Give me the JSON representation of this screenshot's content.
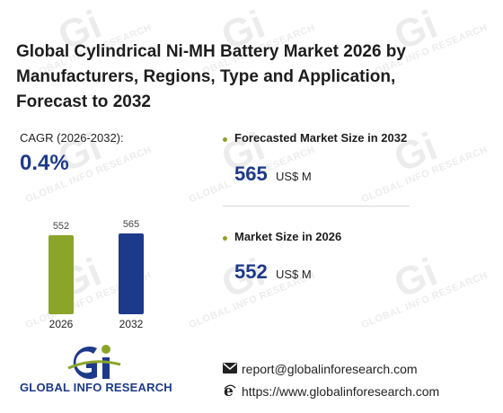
{
  "header": {
    "title": "Global Cylindrical Ni-MH Battery Market 2026 by Manufacturers, Regions, Type and Application, Forecast to 2032"
  },
  "cagr": {
    "label": "CAGR (2026-2032):",
    "value": "0.4%"
  },
  "kpis": [
    {
      "title": "Forecasted Market Size in 2032",
      "value": "565",
      "unit": "US$ M"
    },
    {
      "title": "Market Size in 2026",
      "value": "552",
      "unit": "US$ M"
    }
  ],
  "chart_data": {
    "type": "bar",
    "categories": [
      "2026",
      "2032"
    ],
    "values": [
      552,
      565
    ],
    "colors": [
      "#8aa52a",
      "#1d3a8a"
    ],
    "title": "",
    "xlabel": "",
    "ylabel": "",
    "grid": false
  },
  "branding": {
    "logo_text": "GLOBAL INFO RESEARCH",
    "watermark_text": "GLOBAL INFO RESEARCH",
    "logo_mark": "Gi"
  },
  "contact": {
    "email": "report@globalinforesearch.com",
    "website": "https://www.globalinforesearch.com"
  },
  "colors": {
    "accent_blue": "#1d3a8a",
    "accent_green": "#8aa52a"
  }
}
